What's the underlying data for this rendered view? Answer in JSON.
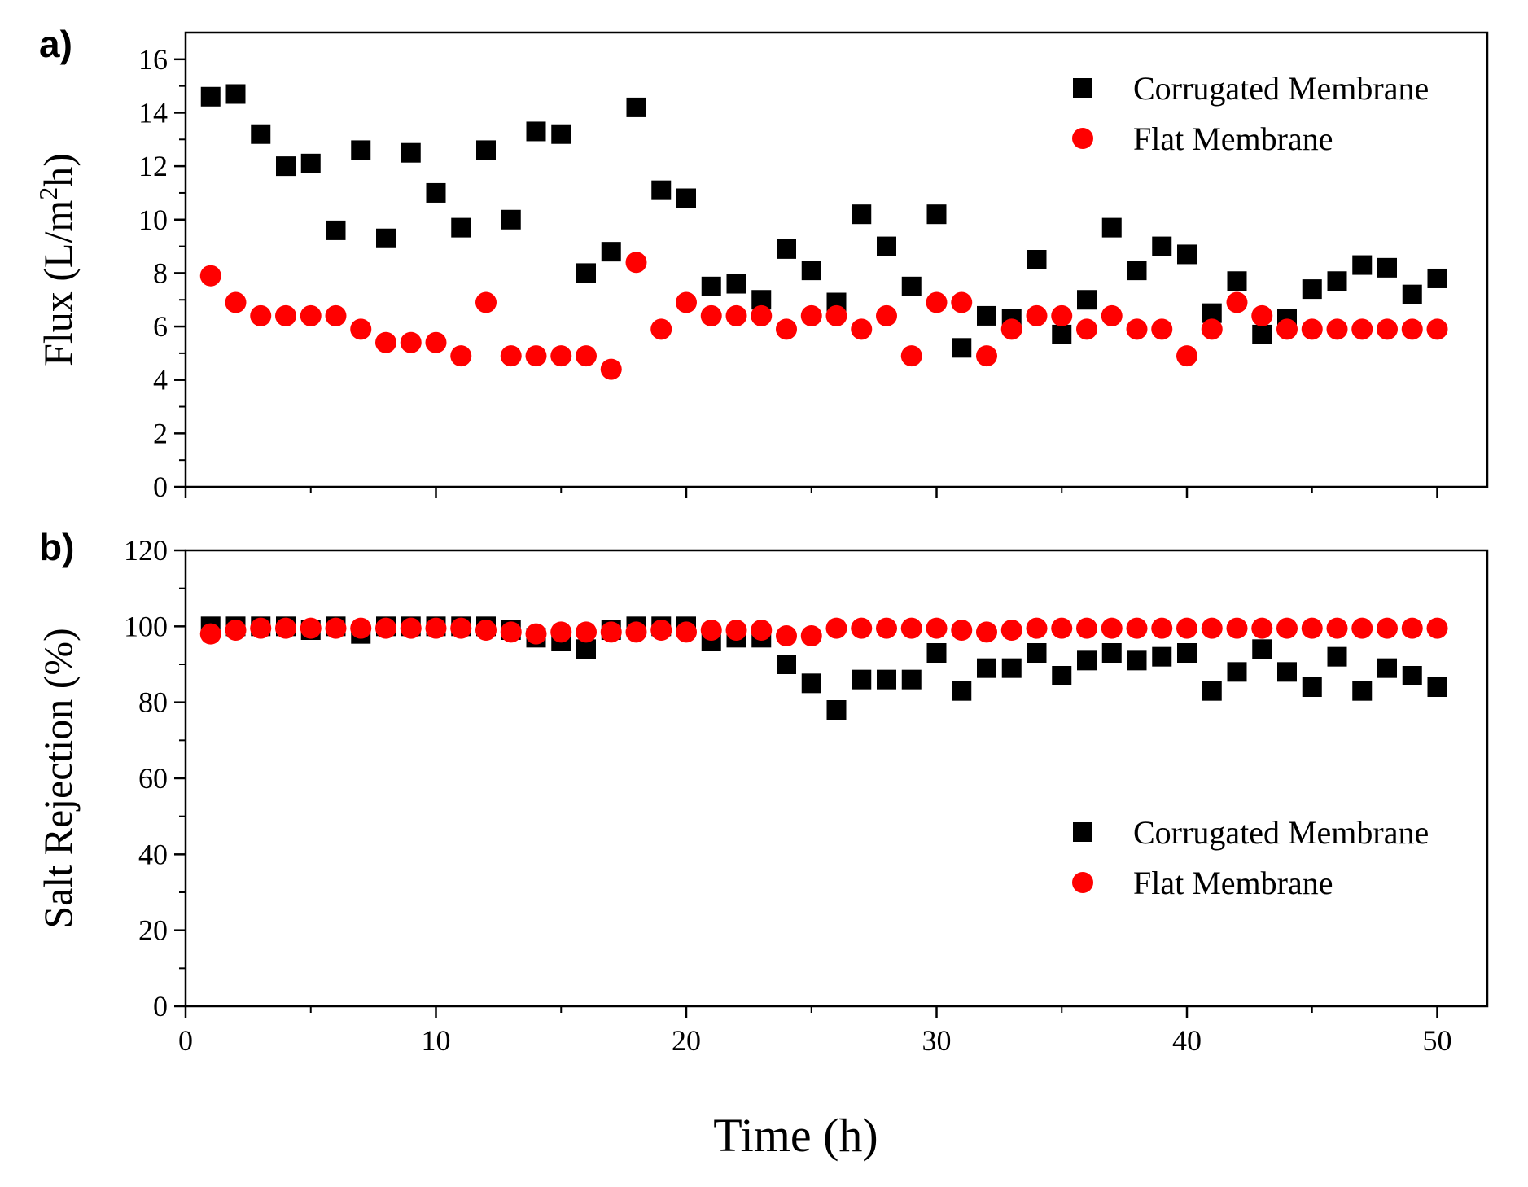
{
  "chart_data": [
    {
      "type": "scatter",
      "panel_label": "a)",
      "title": "",
      "xlabel": "",
      "ylabel": "Flux (L/m2h)",
      "ylabel_parts": {
        "before": "Flux (L/m",
        "sup": "2",
        "after": "h)"
      },
      "xlim": [
        0,
        52
      ],
      "ylim": [
        0,
        17
      ],
      "yticks": [
        0,
        2,
        4,
        6,
        8,
        10,
        12,
        14,
        16
      ],
      "ytick_labels": [
        "0",
        "2",
        "4",
        "6",
        "8",
        "10",
        "12",
        "14",
        "16"
      ],
      "legend_position": "top-right",
      "x": [
        1,
        2,
        3,
        4,
        5,
        6,
        7,
        8,
        9,
        10,
        11,
        12,
        13,
        14,
        15,
        16,
        17,
        18,
        19,
        20,
        21,
        22,
        23,
        24,
        25,
        26,
        27,
        28,
        29,
        30,
        31,
        32,
        33,
        34,
        35,
        36,
        37,
        38,
        39,
        40,
        41,
        42,
        43,
        44,
        45,
        46,
        47,
        48,
        49,
        50
      ],
      "series": [
        {
          "name": "Corrugated Membrane",
          "marker": "square",
          "color": "#000000",
          "values": [
            14.6,
            14.7,
            13.2,
            12.0,
            12.1,
            9.6,
            12.6,
            9.3,
            12.5,
            11.0,
            9.7,
            12.6,
            10.0,
            13.3,
            13.2,
            8.0,
            8.8,
            14.2,
            11.1,
            10.8,
            7.5,
            7.6,
            7.0,
            8.9,
            8.1,
            6.9,
            10.2,
            9.0,
            7.5,
            10.2,
            5.2,
            6.4,
            6.3,
            8.5,
            5.7,
            7.0,
            9.7,
            8.1,
            9.0,
            8.7,
            6.5,
            7.7,
            5.7,
            6.3,
            7.4,
            7.7,
            8.3,
            8.2,
            7.2,
            7.8
          ]
        },
        {
          "name": "Flat Membrane",
          "marker": "circle",
          "color": "#ff0000",
          "values": [
            7.9,
            6.9,
            6.4,
            6.4,
            6.4,
            6.4,
            5.9,
            5.4,
            5.4,
            5.4,
            4.9,
            6.9,
            4.9,
            4.9,
            4.9,
            4.9,
            4.4,
            8.4,
            5.9,
            6.9,
            6.4,
            6.4,
            6.4,
            5.9,
            6.4,
            6.4,
            5.9,
            6.4,
            4.9,
            6.9,
            6.9,
            4.9,
            5.9,
            6.4,
            6.4,
            5.9,
            6.4,
            5.9,
            5.9,
            4.9,
            5.9,
            6.9,
            6.4,
            5.9,
            5.9,
            5.9,
            5.9,
            5.9,
            5.9,
            5.9
          ]
        }
      ]
    },
    {
      "type": "scatter",
      "panel_label": "b)",
      "title": "",
      "xlabel": "Time (h)",
      "ylabel": "Salt Rejection (%)",
      "xlim": [
        0,
        52
      ],
      "ylim": [
        0,
        120
      ],
      "xticks": [
        0,
        10,
        20,
        30,
        40,
        50
      ],
      "xtick_labels": [
        "0",
        "10",
        "20",
        "30",
        "40",
        "50"
      ],
      "yticks": [
        0,
        20,
        40,
        60,
        80,
        100,
        120
      ],
      "ytick_labels": [
        "0",
        "20",
        "40",
        "60",
        "80",
        "100",
        "120"
      ],
      "legend_position": "center-right",
      "x": [
        1,
        2,
        3,
        4,
        5,
        6,
        7,
        8,
        9,
        10,
        11,
        12,
        13,
        14,
        15,
        16,
        17,
        18,
        19,
        20,
        21,
        22,
        23,
        24,
        25,
        26,
        27,
        28,
        29,
        30,
        31,
        32,
        33,
        34,
        35,
        36,
        37,
        38,
        39,
        40,
        41,
        42,
        43,
        44,
        45,
        46,
        47,
        48,
        49,
        50
      ],
      "series": [
        {
          "name": "Corrugated Membrane",
          "marker": "square",
          "color": "#000000",
          "values": [
            100,
            100,
            100,
            100,
            99,
            100,
            98,
            100,
            100,
            100,
            100,
            100,
            99,
            97,
            96,
            94,
            99,
            100,
            100,
            100,
            96,
            97,
            97,
            90,
            85,
            78,
            86,
            86,
            86,
            93,
            83,
            89,
            89,
            93,
            87,
            91,
            93,
            91,
            92,
            93,
            83,
            88,
            94,
            88,
            84,
            92,
            83,
            89,
            87,
            84
          ]
        },
        {
          "name": "Flat Membrane",
          "marker": "circle",
          "color": "#ff0000",
          "values": [
            98,
            99,
            99.5,
            99.5,
            99.5,
            99.5,
            99.5,
            99.5,
            99.5,
            99.5,
            99.5,
            99,
            98.5,
            98,
            98.5,
            98.5,
            98.5,
            98.5,
            99,
            98.5,
            99,
            99,
            99,
            97.5,
            97.5,
            99.5,
            99.5,
            99.5,
            99.5,
            99.5,
            99,
            98.5,
            99,
            99.5,
            99.5,
            99.5,
            99.5,
            99.5,
            99.5,
            99.5,
            99.5,
            99.5,
            99.5,
            99.5,
            99.5,
            99.5,
            99.5,
            99.5,
            99.5,
            99.5
          ]
        }
      ]
    }
  ]
}
